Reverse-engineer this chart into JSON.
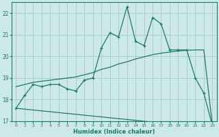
{
  "title": "",
  "xlabel": "Humidex (Indice chaleur)",
  "ylabel": "",
  "bg_color": "#cce8e8",
  "line_color": "#1a7a6a",
  "grid_color": "#aacccc",
  "x_data": [
    0,
    1,
    2,
    3,
    4,
    5,
    6,
    7,
    8,
    9,
    10,
    11,
    12,
    13,
    14,
    15,
    16,
    17,
    18,
    19,
    20,
    21,
    22,
    23
  ],
  "y_main": [
    17.6,
    18.2,
    18.7,
    18.6,
    18.7,
    18.7,
    18.5,
    18.4,
    18.9,
    19.0,
    20.4,
    21.1,
    20.9,
    22.3,
    20.7,
    20.5,
    21.8,
    21.5,
    20.3,
    20.3,
    20.3,
    19.0,
    18.3,
    16.8
  ],
  "y_upper": [
    18.6,
    18.7,
    18.8,
    18.85,
    18.9,
    18.95,
    19.0,
    19.05,
    19.15,
    19.25,
    19.4,
    19.5,
    19.65,
    19.75,
    19.88,
    19.98,
    20.08,
    20.15,
    20.2,
    20.25,
    20.28,
    20.3,
    20.3,
    16.8
  ],
  "y_lower": [
    17.6,
    17.56,
    17.52,
    17.48,
    17.44,
    17.4,
    17.36,
    17.32,
    17.28,
    17.24,
    17.2,
    17.16,
    17.12,
    17.08,
    17.04,
    17.0,
    16.96,
    16.92,
    16.88,
    16.84,
    16.8,
    16.76,
    16.72,
    16.8
  ],
  "ylim": [
    17.0,
    22.5
  ],
  "yticks": [
    17,
    18,
    19,
    20,
    21,
    22
  ],
  "xlim": [
    -0.5,
    23.5
  ],
  "xticks": [
    0,
    1,
    2,
    3,
    4,
    5,
    6,
    7,
    8,
    9,
    10,
    11,
    12,
    13,
    14,
    15,
    16,
    17,
    18,
    19,
    20,
    21,
    22,
    23
  ]
}
